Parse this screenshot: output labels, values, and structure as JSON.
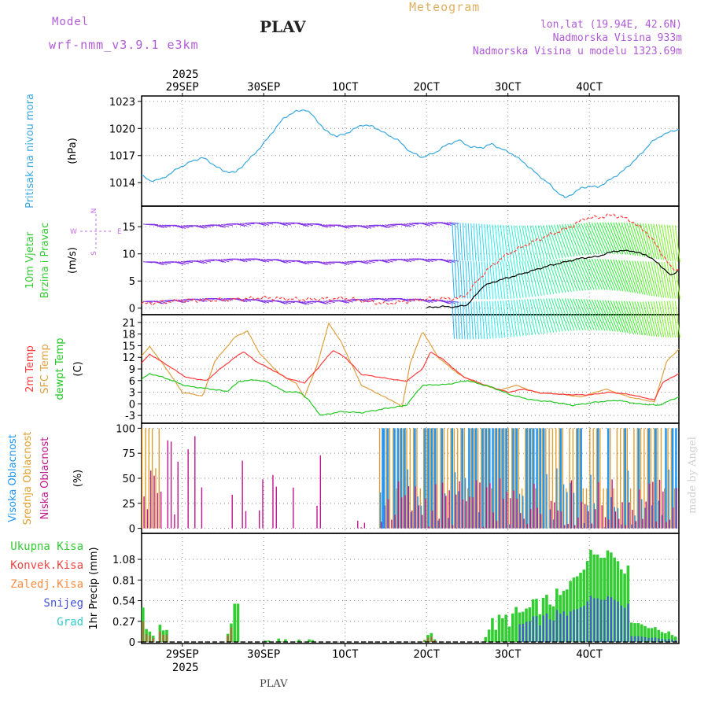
{
  "header": {
    "model_label": "Model",
    "model_name": "wrf-nmm_v3.9.1 e3km",
    "station": "PLAV",
    "meteogram": "Meteogram",
    "lonlat": "lon,lat (19.94E, 42.6N)",
    "altitude": "Nadmorska Visina 933m",
    "model_altitude": "Nadmorska Visina u modelu 1323.69m"
  },
  "footer": {
    "station": "PLAV",
    "made_by": "made by Angel"
  },
  "colors": {
    "pressure": "#3aa8e0",
    "speed": "#000000",
    "gust": "#ff4040",
    "t2m": "#ff3b3b",
    "sfc": "#e0a040",
    "dew": "#22c822",
    "cl_high": "#2196f3",
    "cl_mid": "#e0a030",
    "cl_low": "#c0158c",
    "rain_total": "#33cc33",
    "rain_conv": "#ee4444",
    "rain_frz": "#ff8c40",
    "snow": "#4455dd",
    "graupel": "#33cccc",
    "compass": "#c070e0"
  },
  "chart_data": [
    {
      "type": "line",
      "panel": "pressure",
      "title": "Pritisak na nivou mora",
      "ylabel": "(hPa)",
      "ylim": [
        1011.4,
        1023.6
      ],
      "yticks": [
        1014,
        1017,
        1020,
        1023
      ],
      "x_days": [
        [
          0,
          1014.8
        ],
        [
          0.1,
          1014.2
        ],
        [
          0.25,
          1014.4
        ],
        [
          0.45,
          1015.6
        ],
        [
          0.6,
          1016.3
        ],
        [
          0.75,
          1016.8
        ],
        [
          0.85,
          1016.2
        ],
        [
          1.0,
          1015.3
        ],
        [
          1.15,
          1015.1
        ],
        [
          1.3,
          1016.4
        ],
        [
          1.45,
          1017.8
        ],
        [
          1.6,
          1019.5
        ],
        [
          1.75,
          1021.2
        ],
        [
          1.9,
          1021.9
        ],
        [
          2.0,
          1022.1
        ],
        [
          2.1,
          1021.5
        ],
        [
          2.25,
          1019.8
        ],
        [
          2.4,
          1019.1
        ],
        [
          2.55,
          1019.6
        ],
        [
          2.7,
          1020.4
        ],
        [
          2.85,
          1020.2
        ],
        [
          3.0,
          1019.4
        ],
        [
          3.15,
          1018.7
        ],
        [
          3.3,
          1017.4
        ],
        [
          3.45,
          1016.8
        ],
        [
          3.6,
          1017.3
        ],
        [
          3.75,
          1018.2
        ],
        [
          3.9,
          1018.7
        ],
        [
          4.05,
          1017.9
        ],
        [
          4.2,
          1017.9
        ],
        [
          4.3,
          1018.3
        ],
        [
          4.4,
          1017.8
        ],
        [
          4.55,
          1017.2
        ],
        [
          4.7,
          1016.2
        ],
        [
          4.85,
          1015.0
        ],
        [
          5.0,
          1013.9
        ],
        [
          5.1,
          1013.0
        ],
        [
          5.2,
          1012.3
        ],
        [
          5.3,
          1012.8
        ],
        [
          5.4,
          1013.4
        ],
        [
          5.5,
          1013.6
        ],
        [
          5.6,
          1013.5
        ],
        [
          5.7,
          1014.0
        ],
        [
          5.8,
          1014.6
        ],
        [
          5.9,
          1015.2
        ],
        [
          6.0,
          1016.0
        ],
        [
          6.15,
          1017.3
        ],
        [
          6.25,
          1018.4
        ],
        [
          6.4,
          1019.3
        ],
        [
          6.55,
          1019.8
        ],
        [
          6.6,
          1019.9
        ]
      ],
      "series_name": "Pritisak na nivou mora"
    },
    {
      "type": "line",
      "panel": "wind",
      "title": "10m Vjetar Brzina i Pravac",
      "ylabel": "(m/s)",
      "ylim": [
        -1.2,
        18.8
      ],
      "yticks": [
        0,
        5,
        10,
        15
      ],
      "compass": [
        "N",
        "W",
        "E",
        "S"
      ],
      "speed": [
        [
          3.5,
          0.1
        ],
        [
          3.7,
          0.3
        ],
        [
          3.85,
          0.2
        ],
        [
          4.0,
          0.6
        ],
        [
          4.1,
          2.3
        ],
        [
          4.2,
          4.1
        ],
        [
          4.4,
          5.2
        ],
        [
          4.6,
          6.0
        ],
        [
          4.8,
          6.9
        ],
        [
          5.0,
          7.8
        ],
        [
          5.2,
          8.5
        ],
        [
          5.4,
          9.2
        ],
        [
          5.6,
          9.5
        ],
        [
          5.8,
          10.5
        ],
        [
          6.0,
          10.6
        ],
        [
          6.2,
          9.8
        ],
        [
          6.35,
          8.2
        ],
        [
          6.5,
          6.0
        ],
        [
          6.6,
          7.0
        ]
      ],
      "gust": [
        [
          0,
          0.8
        ],
        [
          0.5,
          1.4
        ],
        [
          1.0,
          1.5
        ],
        [
          1.5,
          1.9
        ],
        [
          2.0,
          1.6
        ],
        [
          2.5,
          1.8
        ],
        [
          3.0,
          0.8
        ],
        [
          3.5,
          1.7
        ],
        [
          3.9,
          1.8
        ],
        [
          4.0,
          2.7
        ],
        [
          4.15,
          5.5
        ],
        [
          4.3,
          7.8
        ],
        [
          4.5,
          10.0
        ],
        [
          4.7,
          11.5
        ],
        [
          4.9,
          12.8
        ],
        [
          5.1,
          14.0
        ],
        [
          5.3,
          15.2
        ],
        [
          5.45,
          16.6
        ],
        [
          5.6,
          16.7
        ],
        [
          5.8,
          17.2
        ],
        [
          6.0,
          16.2
        ],
        [
          6.2,
          14.0
        ],
        [
          6.35,
          11.0
        ],
        [
          6.5,
          7.5
        ],
        [
          6.6,
          7.0
        ]
      ],
      "rows": [
        15.5,
        8.8,
        1.5
      ]
    },
    {
      "type": "line",
      "panel": "temperature",
      "labels": [
        "2m Temp",
        "SFC Temp",
        "dewpt Temp"
      ],
      "ylabel": "(C)",
      "ylim": [
        -5,
        23
      ],
      "yticks": [
        -3,
        0,
        3,
        6,
        9,
        12,
        15,
        18,
        21
      ],
      "t2m": [
        [
          0,
          10.5
        ],
        [
          0.1,
          12.8
        ],
        [
          0.3,
          10.2
        ],
        [
          0.55,
          6.8
        ],
        [
          0.8,
          6.0
        ],
        [
          0.95,
          8.8
        ],
        [
          1.15,
          12.0
        ],
        [
          1.25,
          13.5
        ],
        [
          1.4,
          11.0
        ],
        [
          1.6,
          8.8
        ],
        [
          1.8,
          6.5
        ],
        [
          2.0,
          5.4
        ],
        [
          2.15,
          8.8
        ],
        [
          2.35,
          13.8
        ],
        [
          2.5,
          12.0
        ],
        [
          2.7,
          7.6
        ],
        [
          3.0,
          6.6
        ],
        [
          3.25,
          5.8
        ],
        [
          3.45,
          9.0
        ],
        [
          3.55,
          13.4
        ],
        [
          3.7,
          11.5
        ],
        [
          3.95,
          7.0
        ],
        [
          4.2,
          5.0
        ],
        [
          4.5,
          3.0
        ],
        [
          4.7,
          3.8
        ],
        [
          4.9,
          2.8
        ],
        [
          5.2,
          2.4
        ],
        [
          5.5,
          2.3
        ],
        [
          5.75,
          3.0
        ],
        [
          6.0,
          2.4
        ],
        [
          6.3,
          1.0
        ],
        [
          6.4,
          5.5
        ],
        [
          6.6,
          7.8
        ]
      ],
      "sfc": [
        [
          0,
          12.3
        ],
        [
          0.1,
          14.8
        ],
        [
          0.3,
          9.2
        ],
        [
          0.5,
          3.0
        ],
        [
          0.75,
          2.0
        ],
        [
          0.9,
          11.0
        ],
        [
          1.15,
          17.3
        ],
        [
          1.3,
          18.8
        ],
        [
          1.45,
          13.0
        ],
        [
          1.7,
          7.6
        ],
        [
          1.9,
          5.2
        ],
        [
          2.0,
          1.8
        ],
        [
          2.15,
          9.6
        ],
        [
          2.3,
          20.8
        ],
        [
          2.45,
          16.0
        ],
        [
          2.7,
          4.8
        ],
        [
          3.0,
          1.6
        ],
        [
          3.1,
          0.6
        ],
        [
          3.2,
          -0.8
        ],
        [
          3.3,
          10.5
        ],
        [
          3.45,
          18.7
        ],
        [
          3.65,
          11.8
        ],
        [
          3.9,
          7.6
        ],
        [
          4.1,
          5.5
        ],
        [
          4.4,
          3.5
        ],
        [
          4.6,
          4.8
        ],
        [
          4.85,
          2.9
        ],
        [
          5.1,
          2.6
        ],
        [
          5.4,
          1.8
        ],
        [
          5.7,
          3.8
        ],
        [
          6.0,
          1.7
        ],
        [
          6.3,
          0.5
        ],
        [
          6.45,
          11.0
        ],
        [
          6.6,
          14.1
        ]
      ],
      "dew": [
        [
          0,
          6.3
        ],
        [
          0.1,
          7.8
        ],
        [
          0.3,
          6.6
        ],
        [
          0.55,
          4.6
        ],
        [
          0.85,
          3.8
        ],
        [
          1.05,
          3.2
        ],
        [
          1.2,
          5.8
        ],
        [
          1.4,
          6.2
        ],
        [
          1.55,
          5.6
        ],
        [
          1.75,
          3.2
        ],
        [
          1.95,
          2.9
        ],
        [
          2.05,
          1.0
        ],
        [
          2.2,
          -3.0
        ],
        [
          2.45,
          -2.0
        ],
        [
          2.7,
          -2.3
        ],
        [
          3.0,
          -1.2
        ],
        [
          3.25,
          -0.4
        ],
        [
          3.45,
          4.8
        ],
        [
          3.75,
          5.0
        ],
        [
          4.0,
          6.0
        ],
        [
          4.3,
          4.3
        ],
        [
          4.55,
          2.2
        ],
        [
          4.8,
          1.0
        ],
        [
          5.05,
          0.5
        ],
        [
          5.3,
          -0.4
        ],
        [
          5.6,
          0.5
        ],
        [
          5.85,
          0.9
        ],
        [
          6.1,
          0.0
        ],
        [
          6.35,
          -0.4
        ],
        [
          6.6,
          1.8
        ]
      ]
    },
    {
      "type": "bar",
      "panel": "clouds",
      "labels": [
        "Visoka Oblacnost",
        "Srednja Oblacnost",
        "Niska Oblacnost"
      ],
      "ylabel": "(%)",
      "ylim": [
        -5,
        105
      ],
      "yticks": [
        0,
        25,
        50,
        75,
        100
      ]
    },
    {
      "type": "bar",
      "panel": "precip",
      "labels": [
        "Ukupna Kisa",
        "Konvek.Kisa",
        "Zaledj.Kisa",
        "Snijeg",
        "Grad"
      ],
      "ylabel": "1hr Precip (mm)",
      "ylim": [
        -0.02,
        1.42
      ],
      "yticks": [
        0,
        0.27,
        0.54,
        0.81,
        1.08
      ],
      "ytick_labels": [
        "0",
        "0.27",
        "0.54",
        "0.81",
        "1.08"
      ]
    }
  ],
  "x_axis": {
    "year": "2025",
    "day_labels": [
      "29SEP",
      "30SEP",
      "1OCT",
      "2OCT",
      "3OCT",
      "4OCT"
    ],
    "day_positions": [
      0.5,
      1.5,
      2.5,
      3.5,
      4.5,
      5.5
    ],
    "range_days": [
      0,
      6.6
    ]
  }
}
